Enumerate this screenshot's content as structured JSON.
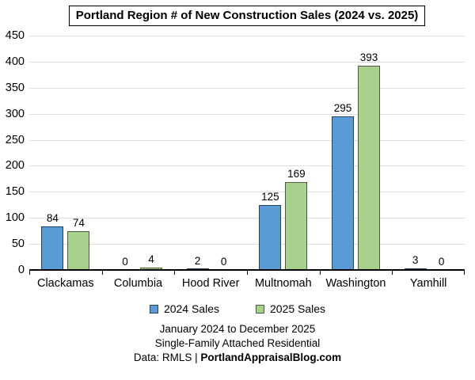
{
  "chart_data": {
    "type": "bar",
    "title": "Portland Region # of New Construction Sales (2024 vs. 2025)",
    "categories": [
      "Clackamas",
      "Columbia",
      "Hood River",
      "Multnomah",
      "Washington",
      "Yamhill"
    ],
    "series": [
      {
        "name": "2024 Sales",
        "values": [
          84,
          0,
          2,
          125,
          295,
          3
        ],
        "fill": "#5B9BD5",
        "border": "#25435C"
      },
      {
        "name": "2025 Sales",
        "values": [
          74,
          4,
          0,
          169,
          393,
          0
        ],
        "fill": "#A9D18E",
        "border": "#4A593F"
      }
    ],
    "xlabel": "",
    "ylabel": "",
    "ylim": [
      0,
      450
    ],
    "ytick_step": 50,
    "grid": true,
    "grid_color": "#DEDEDE",
    "legend_position": "bottom"
  },
  "legend": {
    "items": [
      {
        "label": "2024 Sales",
        "color": "#5B9BD5",
        "border": "#25435C"
      },
      {
        "label": "2025 Sales",
        "color": "#A9D18E",
        "border": "#4A593F"
      }
    ]
  },
  "footer": {
    "line1": "January 2024 to December 2025",
    "line2": "Single-Family Attached Residential",
    "line3_prefix": "Data: RMLS | ",
    "line3_bold": "PortlandAppraisalBlog.com"
  }
}
